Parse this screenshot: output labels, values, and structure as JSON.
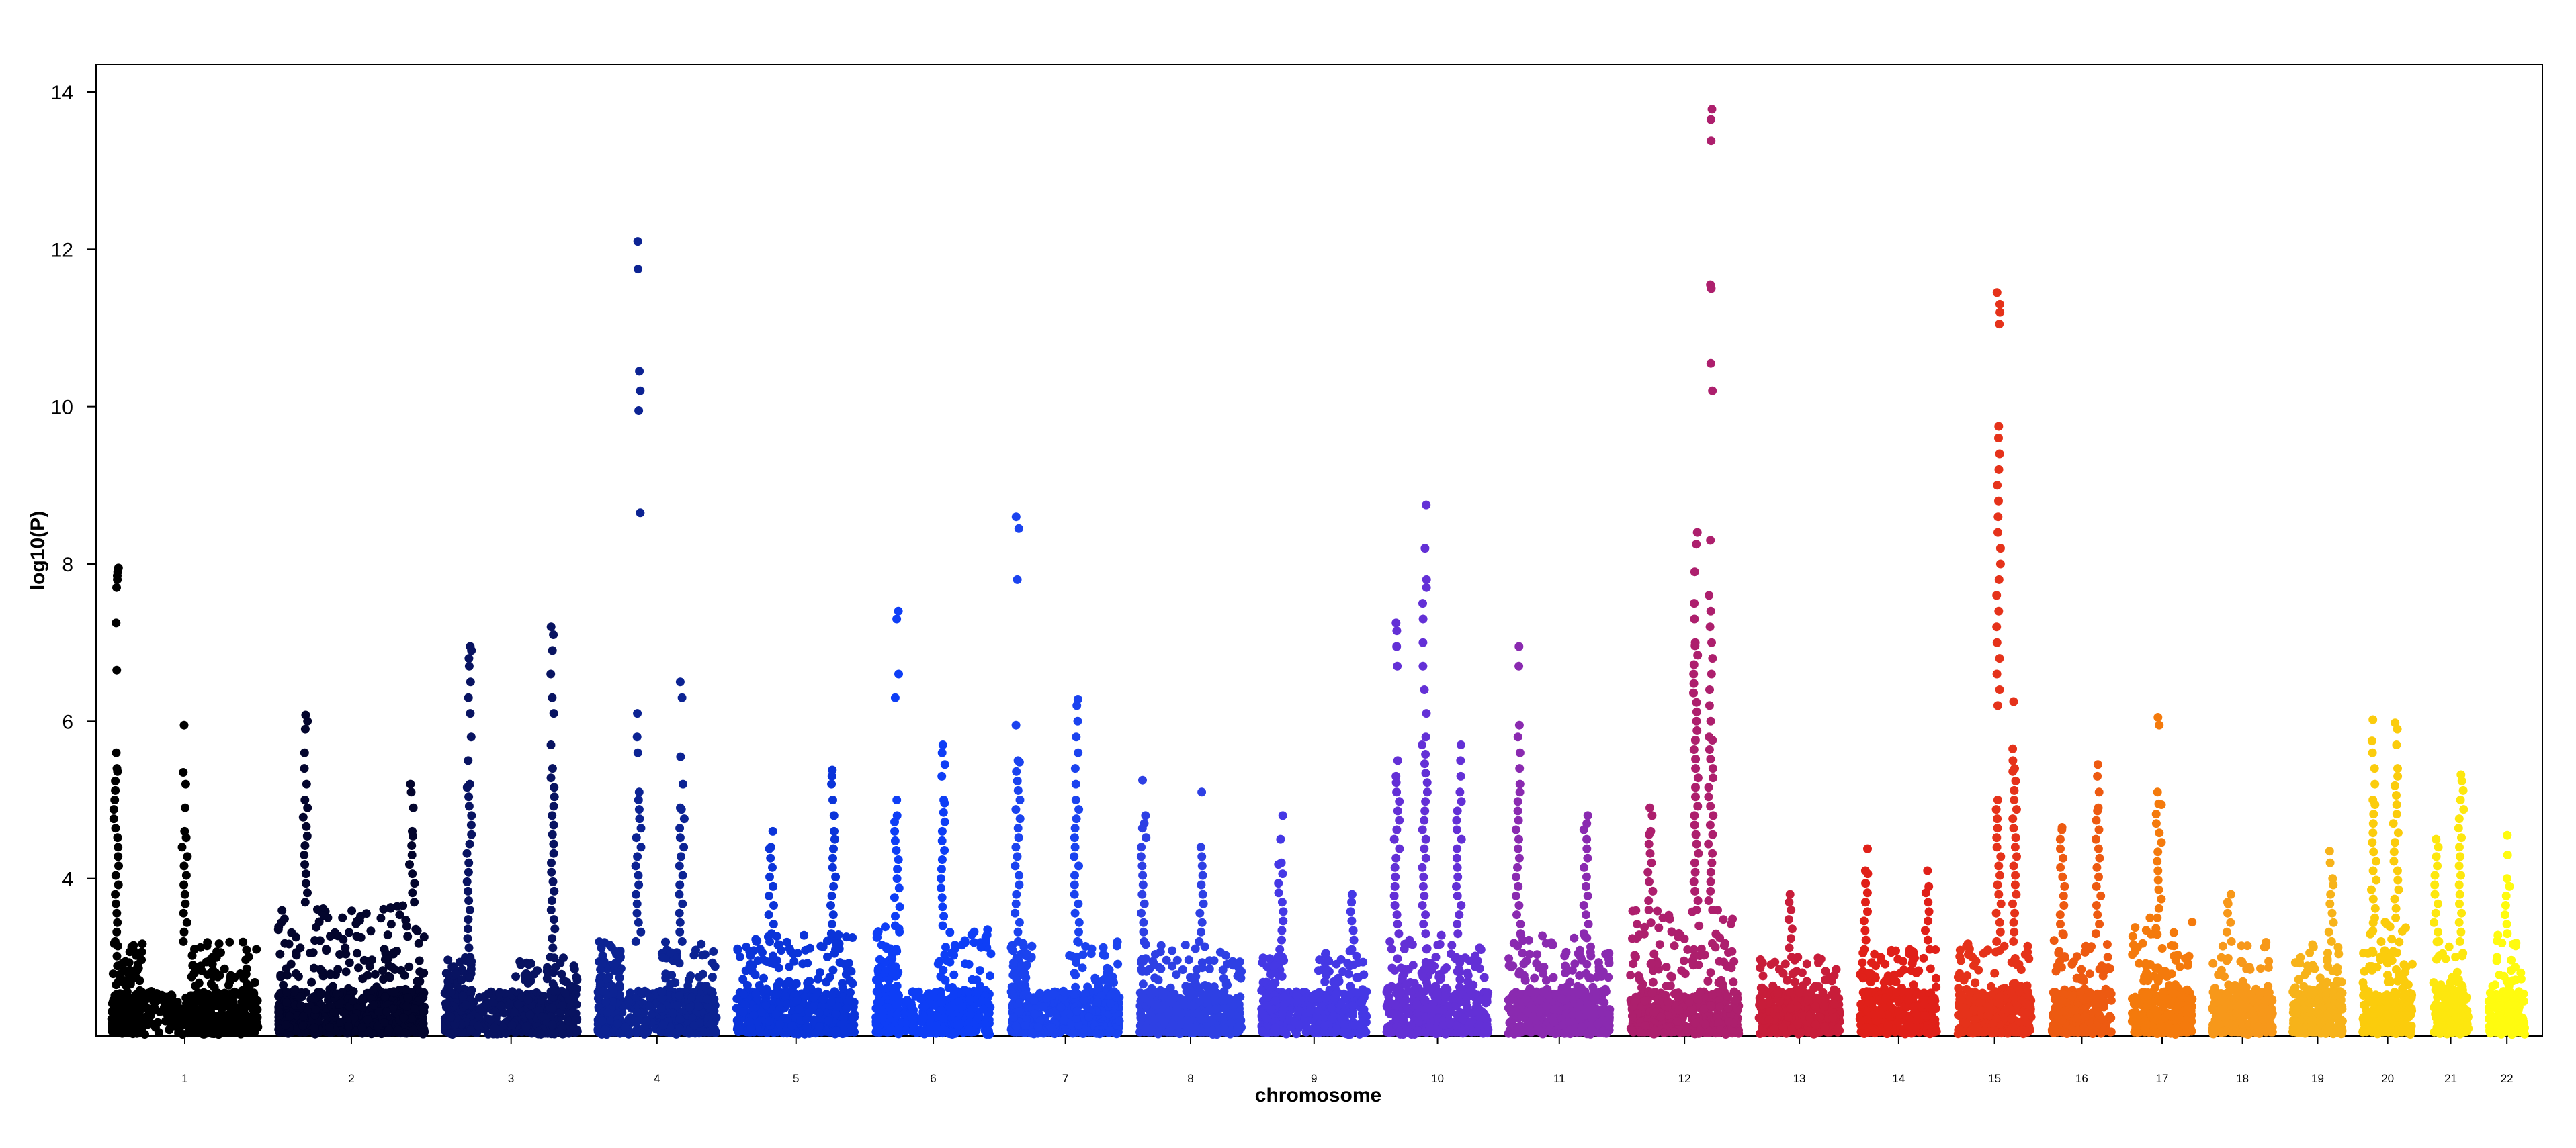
{
  "chart_data": {
    "type": "scatter",
    "subtype": "manhattan",
    "title": "",
    "xlabel": "chromosome",
    "ylabel": "log10(P)",
    "ylim": [
      2.0,
      14.35
    ],
    "yticks": [
      4,
      6,
      8,
      10,
      12,
      14
    ],
    "grid": false,
    "legend": "none",
    "chromosomes": [
      {
        "label": "1",
        "color": "#000000",
        "weight": 2.2,
        "base": 3.2,
        "subblocks": 2,
        "peaks": [
          {
            "at": 0.05,
            "values": [
              7.95,
              7.9,
              7.85,
              7.8,
              7.7,
              7.25,
              6.65,
              5.6,
              5.4
            ]
          },
          {
            "at": 0.5,
            "values": [
              5.95,
              5.35,
              5.2,
              4.9,
              4.6
            ]
          }
        ]
      },
      {
        "label": "2",
        "color": "#03052d",
        "weight": 2.2,
        "base": 3.7,
        "subblocks": 1,
        "peaks": [
          {
            "at": 0.2,
            "values": [
              6.08,
              6.0,
              5.9,
              5.6,
              5.4,
              5.2,
              5.0
            ]
          },
          {
            "at": 0.9,
            "values": [
              5.2,
              5.1,
              4.9,
              4.6
            ]
          }
        ]
      },
      {
        "label": "3",
        "color": "#081361",
        "weight": 2.0,
        "base": 3.0,
        "subblocks": 2,
        "peaks": [
          {
            "at": 0.2,
            "values": [
              6.95,
              6.9,
              6.8,
              6.7,
              6.5,
              6.3,
              6.1,
              5.8,
              5.5,
              5.2
            ]
          },
          {
            "at": 0.8,
            "values": [
              7.2,
              7.1,
              6.9,
              6.6,
              6.3,
              6.1,
              5.7,
              5.4
            ]
          }
        ]
      },
      {
        "label": "4",
        "color": "#0c2393",
        "weight": 1.8,
        "base": 3.2,
        "subblocks": 2,
        "peaks": [
          {
            "at": 0.35,
            "values": [
              12.1,
              11.75,
              10.45,
              10.2,
              9.95,
              8.65,
              6.1,
              5.8,
              5.6,
              5.1
            ]
          },
          {
            "at": 0.7,
            "values": [
              6.5,
              6.3,
              5.55,
              5.2,
              4.9
            ]
          }
        ]
      },
      {
        "label": "5",
        "color": "#0b34d9",
        "weight": 1.8,
        "base": 3.3,
        "subblocks": 1,
        "peaks": [
          {
            "at": 0.8,
            "values": [
              5.38,
              5.3,
              5.2,
              5.0,
              4.8,
              4.6
            ]
          },
          {
            "at": 0.3,
            "values": [
              4.6,
              4.4
            ]
          }
        ]
      },
      {
        "label": "6",
        "color": "#0e3ef6",
        "weight": 1.75,
        "base": 3.4,
        "subblocks": 2,
        "peaks": [
          {
            "at": 0.2,
            "values": [
              7.4,
              7.3,
              6.6,
              6.3,
              5.0,
              4.8
            ]
          },
          {
            "at": 0.58,
            "values": [
              5.7,
              5.6,
              5.45,
              5.3,
              5.0
            ]
          }
        ]
      },
      {
        "label": "7",
        "color": "#1b43ef",
        "weight": 1.65,
        "base": 3.2,
        "subblocks": 2,
        "peaks": [
          {
            "at": 0.08,
            "values": [
              8.6,
              8.45,
              7.8,
              5.95,
              5.5
            ]
          },
          {
            "at": 0.6,
            "values": [
              6.28,
              6.2,
              6.0,
              5.8,
              5.6,
              5.4,
              5.2,
              5.0
            ]
          }
        ]
      },
      {
        "label": "8",
        "color": "#2e40e4",
        "weight": 1.55,
        "base": 3.2,
        "subblocks": 1,
        "peaks": [
          {
            "at": 0.06,
            "values": [
              5.25,
              4.8,
              4.7
            ]
          },
          {
            "at": 0.6,
            "values": [
              5.1,
              4.4
            ]
          }
        ]
      },
      {
        "label": "9",
        "color": "#4538e5",
        "weight": 1.6,
        "base": 3.1,
        "subblocks": 2,
        "peaks": [
          {
            "at": 0.2,
            "values": [
              4.8,
              4.5,
              4.2
            ]
          },
          {
            "at": 0.85,
            "values": [
              3.8,
              3.7
            ]
          }
        ]
      },
      {
        "label": "10",
        "color": "#6330d6",
        "weight": 1.55,
        "base": 3.3,
        "subblocks": 1,
        "peaks": [
          {
            "at": 0.38,
            "values": [
              8.75,
              8.2,
              7.8,
              7.7,
              7.5,
              7.3,
              7.0,
              6.7,
              6.4,
              6.1,
              5.8
            ]
          },
          {
            "at": 0.12,
            "values": [
              7.25,
              7.15,
              6.95,
              6.7,
              5.5,
              5.3
            ]
          },
          {
            "at": 0.7,
            "values": [
              5.7,
              5.5,
              5.3,
              5.1
            ]
          }
        ]
      },
      {
        "label": "11",
        "color": "#8a2ab0",
        "weight": 1.55,
        "base": 3.3,
        "subblocks": 1,
        "peaks": [
          {
            "at": 0.12,
            "values": [
              6.95,
              6.7,
              5.95,
              5.8,
              5.6,
              5.4,
              5.2
            ]
          },
          {
            "at": 0.75,
            "values": [
              4.8,
              4.7
            ]
          }
        ]
      },
      {
        "label": "12",
        "color": "#ad1f6d",
        "weight": 1.65,
        "base": 3.6,
        "subblocks": 1,
        "peaks": [
          {
            "at": 0.73,
            "values": [
              13.78,
              13.65,
              13.38,
              11.55,
              11.5,
              10.55,
              10.2,
              8.3,
              7.6,
              7.4,
              7.2,
              7.0,
              6.8,
              6.6,
              6.4,
              6.2,
              6.0,
              5.8
            ]
          },
          {
            "at": 0.6,
            "values": [
              8.4,
              8.25,
              7.9,
              7.5,
              7.3,
              7.0
            ]
          },
          {
            "at": 0.2,
            "values": [
              4.9,
              4.8,
              4.6
            ]
          }
        ]
      },
      {
        "label": "13",
        "color": "#c81d3a",
        "weight": 1.25,
        "base": 3.0,
        "subblocks": 1,
        "peaks": [
          {
            "at": 0.4,
            "values": [
              3.8,
              3.7
            ]
          }
        ]
      },
      {
        "label": "14",
        "color": "#e02019",
        "weight": 1.2,
        "base": 3.1,
        "subblocks": 1,
        "peaks": [
          {
            "at": 0.1,
            "values": [
              4.38,
              4.1
            ]
          },
          {
            "at": 0.85,
            "values": [
              4.1,
              3.9
            ]
          }
        ]
      },
      {
        "label": "15",
        "color": "#e5321a",
        "weight": 1.15,
        "base": 3.2,
        "subblocks": 1,
        "peaks": [
          {
            "at": 0.55,
            "values": [
              11.45,
              11.3,
              11.2,
              11.05,
              9.75,
              9.6,
              9.4,
              9.2,
              9.0,
              8.8,
              8.6,
              8.4,
              8.2,
              8.0,
              7.8,
              7.6,
              7.4,
              7.2,
              7.0,
              6.8,
              6.6,
              6.4,
              6.2,
              5.0
            ]
          },
          {
            "at": 0.75,
            "values": [
              6.25,
              5.65,
              5.5,
              5.4
            ]
          }
        ]
      },
      {
        "label": "16",
        "color": "#ed5a11",
        "weight": 0.95,
        "base": 3.3,
        "subblocks": 1,
        "peaks": [
          {
            "at": 0.75,
            "values": [
              5.45,
              5.3,
              5.1,
              4.9
            ]
          },
          {
            "at": 0.2,
            "values": [
              4.65
            ]
          }
        ]
      },
      {
        "label": "17",
        "color": "#f47a0c",
        "weight": 0.95,
        "base": 3.5,
        "subblocks": 1,
        "peaks": [
          {
            "at": 0.45,
            "values": [
              6.05,
              5.95,
              5.1,
              4.95
            ]
          }
        ]
      },
      {
        "label": "18",
        "color": "#f7981a",
        "weight": 0.95,
        "base": 3.2,
        "subblocks": 1,
        "peaks": [
          {
            "at": 0.3,
            "values": [
              3.8,
              3.7
            ]
          }
        ]
      },
      {
        "label": "19",
        "color": "#f7b31a",
        "weight": 0.8,
        "base": 3.2,
        "subblocks": 1,
        "peaks": [
          {
            "at": 0.75,
            "values": [
              4.35,
              4.2,
              4.0
            ]
          }
        ]
      },
      {
        "label": "20",
        "color": "#fbcc0c",
        "weight": 0.8,
        "base": 3.5,
        "subblocks": 1,
        "peaks": [
          {
            "at": 0.25,
            "values": [
              6.02,
              5.75,
              5.6,
              5.4,
              5.2,
              5.0
            ]
          },
          {
            "at": 0.65,
            "values": [
              5.98,
              5.9,
              5.7,
              5.4
            ]
          }
        ]
      },
      {
        "label": "21",
        "color": "#fde70e",
        "weight": 0.6,
        "base": 3.2,
        "subblocks": 1,
        "peaks": [
          {
            "at": 0.75,
            "values": [
              5.32
            ]
          },
          {
            "at": 0.15,
            "values": [
              4.5
            ]
          }
        ]
      },
      {
        "label": "22",
        "color": "#fffb0f",
        "weight": 0.6,
        "base": 3.3,
        "subblocks": 1,
        "peaks": [
          {
            "at": 0.5,
            "values": [
              4.55,
              4.3,
              4.0
            ]
          }
        ]
      }
    ]
  }
}
